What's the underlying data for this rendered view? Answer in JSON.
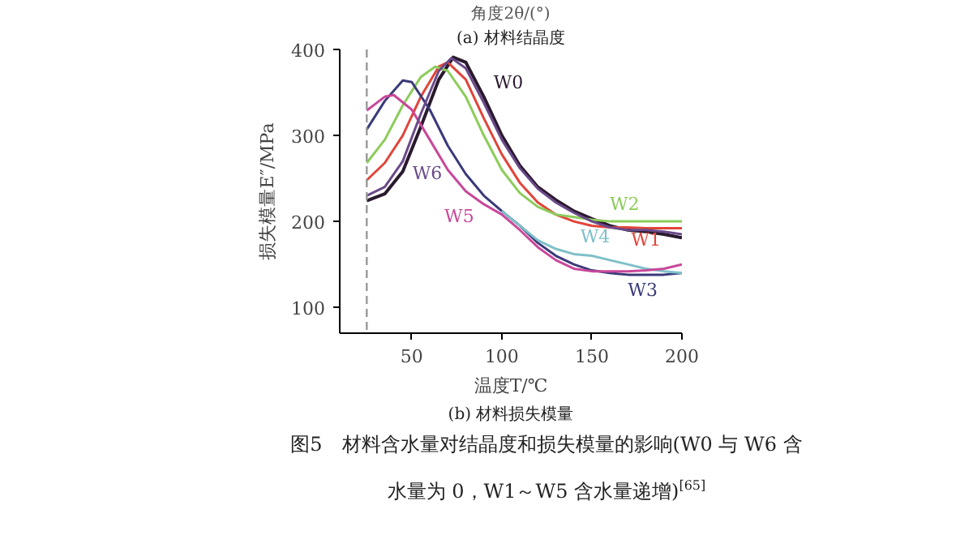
{
  "chart_data": {
    "type": "line",
    "xlabel": "温度T/℃",
    "ylabel": "损失模量E″/MPa",
    "annotations": [
      "角度2θ/(°)",
      "(a) 材料结晶度",
      "(b) 材料损失模量",
      "图5　材料含水量对结晶度和损失模量的影响(W0 与 W6 含",
      "水量为 0，W1～W5 含水量递增)$^{[65]}$"
    ],
    "xlim": [
      10,
      200
    ],
    "ylim": [
      70,
      400
    ],
    "xticks": [
      50,
      100,
      150,
      200
    ],
    "yticks": [
      100,
      200,
      300,
      400
    ],
    "grid": false,
    "legend": false,
    "marker": "none",
    "line_style": "solid",
    "ref_lines": [
      {
        "axis": "x",
        "value": 25,
        "label": null,
        "color": "#999999",
        "line_style": "dashed"
      }
    ],
    "series": [
      {
        "name": "W0",
        "color": "#2a1a2e",
        "x": [
          25,
          35,
          45,
          55,
          65,
          73,
          80,
          90,
          100,
          110,
          120,
          130,
          140,
          150,
          160,
          170,
          180,
          190,
          200
        ],
        "values": [
          224,
          232,
          258,
          310,
          365,
          391,
          385,
          345,
          300,
          265,
          240,
          225,
          212,
          203,
          195,
          190,
          188,
          185,
          181
        ]
      },
      {
        "name": "W1",
        "color": "#e0453a",
        "x": [
          25,
          35,
          45,
          55,
          65,
          70,
          80,
          90,
          100,
          110,
          120,
          130,
          140,
          150,
          160,
          170,
          180,
          190,
          200
        ],
        "values": [
          248,
          268,
          300,
          345,
          380,
          385,
          365,
          320,
          278,
          245,
          222,
          208,
          200,
          195,
          193,
          193,
          192,
          192,
          192
        ]
      },
      {
        "name": "W2",
        "color": "#8ccc5a",
        "x": [
          25,
          35,
          45,
          55,
          63,
          70,
          80,
          90,
          100,
          110,
          120,
          130,
          140,
          150,
          160,
          170,
          180,
          190,
          200
        ],
        "values": [
          268,
          295,
          335,
          368,
          380,
          375,
          345,
          300,
          260,
          233,
          217,
          208,
          205,
          202,
          200,
          200,
          200,
          200,
          200
        ]
      },
      {
        "name": "W3",
        "color": "#3a3a7a",
        "x": [
          25,
          35,
          45,
          50,
          60,
          70,
          80,
          90,
          100,
          110,
          120,
          130,
          140,
          150,
          160,
          170,
          180,
          190,
          200
        ],
        "values": [
          307,
          340,
          364,
          362,
          330,
          288,
          255,
          230,
          212,
          195,
          175,
          160,
          150,
          143,
          140,
          138,
          138,
          138,
          140
        ]
      },
      {
        "name": "W4",
        "color": "#7fc0c8",
        "x": [
          100,
          110,
          120,
          130,
          140,
          150,
          160,
          170,
          180,
          190,
          200
        ],
        "values": [
          212,
          195,
          178,
          168,
          162,
          160,
          155,
          150,
          145,
          142,
          140
        ]
      },
      {
        "name": "W5",
        "color": "#c8489a",
        "x": [
          25,
          35,
          40,
          50,
          60,
          70,
          80,
          90,
          100,
          110,
          120,
          130,
          140,
          150,
          160,
          170,
          180,
          190,
          200
        ],
        "values": [
          329,
          345,
          347,
          330,
          295,
          260,
          235,
          220,
          208,
          190,
          170,
          155,
          145,
          142,
          142,
          142,
          143,
          145,
          150
        ]
      },
      {
        "name": "W6",
        "color": "#6a4a8a",
        "x": [
          25,
          35,
          45,
          55,
          65,
          72,
          80,
          90,
          100,
          110,
          120,
          130,
          140,
          150,
          160,
          170,
          180,
          190,
          200
        ],
        "values": [
          230,
          240,
          270,
          325,
          375,
          390,
          378,
          338,
          295,
          262,
          238,
          222,
          210,
          200,
          193,
          190,
          190,
          188,
          185
        ]
      }
    ]
  }
}
